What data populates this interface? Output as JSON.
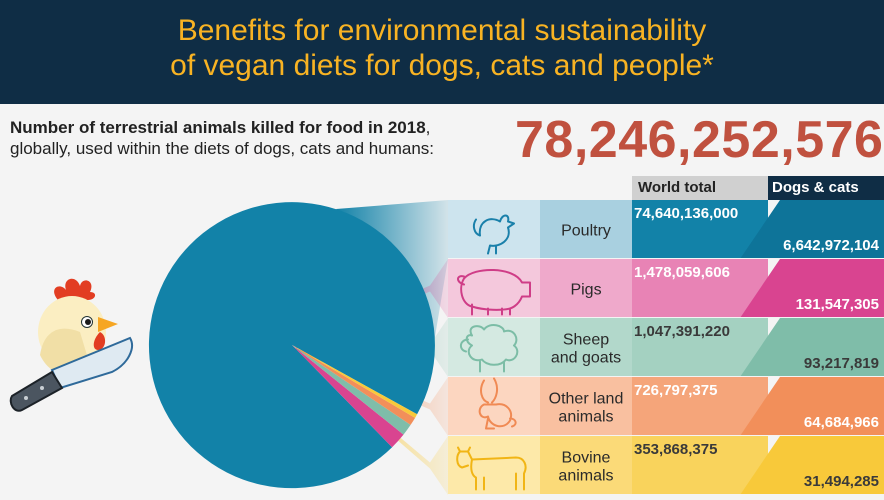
{
  "header": {
    "title_line1": "Benefits for environmental sustainability",
    "title_line2": "of vegan diets for dogs, cats and people*"
  },
  "subtitle": {
    "line1_bold": "Number of terrestrial animals killed for food in 2018",
    "line1_rest": ",",
    "line2": "globally, used within the diets of dogs, cats and humans:"
  },
  "total_killed": "78,246,252,576",
  "chart_data": {
    "type": "pie",
    "title": "Number of terrestrial animals killed for food in 2018",
    "total": "78,246,252,576",
    "columns": [
      "World total",
      "Dogs & cats"
    ],
    "categories": [
      "Poultry",
      "Pigs",
      "Sheep and goats",
      "Other land animals",
      "Bovine animals"
    ],
    "series": [
      {
        "name": "World total",
        "values": [
          74640136000,
          1478059606,
          1047391220,
          726797375,
          353868375
        ]
      },
      {
        "name": "Dogs & cats",
        "values": [
          6642972104,
          131547305,
          93217819,
          64684966,
          31494285
        ]
      }
    ],
    "rows": [
      {
        "label_lines": [
          "Poultry"
        ],
        "icon": "chicken-icon",
        "world_label": "74,640,136,000",
        "dc_label": "6,642,972,104",
        "color": "#1282a8",
        "icon_bg": "#cde4ee",
        "label_bg": "#a9d0e0",
        "world_bg": "#1282a8",
        "dc_bg": "#0e7499",
        "icon_color": "#1a80aa",
        "text_color": "#ffffff"
      },
      {
        "label_lines": [
          "Pigs"
        ],
        "icon": "pig-icon",
        "world_label": "1,478,059,606",
        "dc_label": "131,547,305",
        "color": "#d94490",
        "icon_bg": "#f4c8dc",
        "label_bg": "#efa9cb",
        "world_bg": "#e883b5",
        "dc_bg": "#d94490",
        "icon_color": "#cf3d87",
        "text_color": "#ffffff"
      },
      {
        "label_lines": [
          "Sheep",
          "and goats"
        ],
        "icon": "sheep-icon",
        "world_label": "1,047,391,220",
        "dc_label": "93,217,819",
        "color": "#7fbda9",
        "icon_bg": "#d4e9e1",
        "label_bg": "#b2d8cb",
        "world_bg": "#a4d1c1",
        "dc_bg": "#7fbda9",
        "icon_color": "#7cbda6",
        "text_color": "#3a3a3a"
      },
      {
        "label_lines": [
          "Other land",
          "animals"
        ],
        "icon": "rabbit-icon",
        "world_label": "726,797,375",
        "dc_label": "64,684,966",
        "color": "#f28f5a",
        "icon_bg": "#fcd6c0",
        "label_bg": "#f9c0a0",
        "world_bg": "#f5a57a",
        "dc_bg": "#f28f5a",
        "icon_color": "#f08a54",
        "text_color": "#ffffff"
      },
      {
        "label_lines": [
          "Bovine",
          "animals"
        ],
        "icon": "cow-icon",
        "world_label": "353,868,375",
        "dc_label": "31,494,285",
        "color": "#f8c93a",
        "icon_bg": "#fde9a9",
        "label_bg": "#fbda78",
        "world_bg": "#f9d35c",
        "dc_bg": "#f8c93a",
        "icon_color": "#f1b515",
        "text_color": "#3a3a3a"
      }
    ]
  },
  "colors": {
    "header_bg": "#0f2d45",
    "header_text": "#f8b323",
    "total_text": "#c0513f",
    "pie_main": "#1282a8"
  }
}
